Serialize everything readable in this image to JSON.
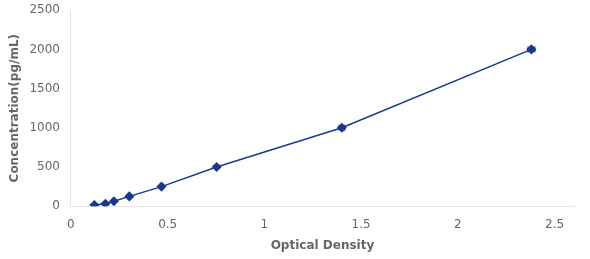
{
  "chart_data": {
    "type": "line",
    "xlabel": "Optical Density",
    "ylabel": "Concentration(pg/mL)",
    "x": [
      0.121,
      0.178,
      0.222,
      0.302,
      0.468,
      0.753,
      1.4,
      2.38
    ],
    "values": [
      15.6,
      31.2,
      62.5,
      125.0,
      250.0,
      500.0,
      1000.0,
      2000.0
    ],
    "xerr": [
      0.005,
      0.005,
      0.006,
      0.007,
      0.008,
      0.01,
      0.015,
      0.018
    ],
    "yerr": [
      2.0,
      3.0,
      4.0,
      6.0,
      8.0,
      12.0,
      20.0,
      30.0
    ],
    "color": "#1a3a8c",
    "marker": "diamond",
    "xlim": [
      0.0,
      2.6
    ],
    "ylim": [
      0,
      2500
    ],
    "xticks": [
      0,
      0.5,
      1,
      1.5,
      2,
      2.5
    ],
    "yticks": [
      0,
      500,
      1000,
      1500,
      2000,
      2500
    ],
    "grid": false
  }
}
